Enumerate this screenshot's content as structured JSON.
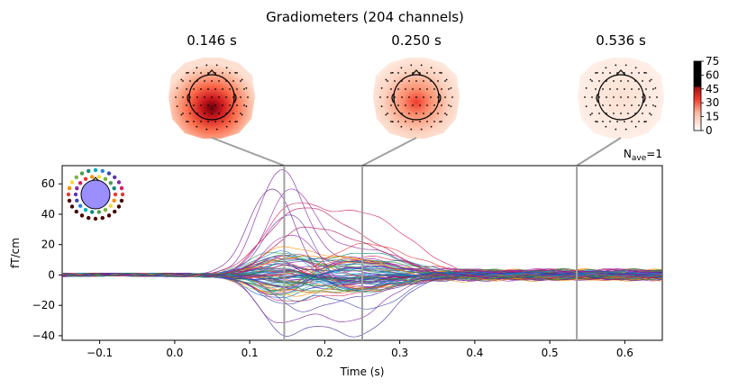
{
  "figure": {
    "title": "Gradiometers (204 channels)",
    "nave_label": "N",
    "nave_sub": "ave",
    "nave_value": "=1"
  },
  "topomaps": [
    {
      "time_label": "0.146 s",
      "time": 0.146,
      "peak_intensity": 0.9
    },
    {
      "time_label": "0.250 s",
      "time": 0.25,
      "peak_intensity": 0.6
    },
    {
      "time_label": "0.536 s",
      "time": 0.536,
      "peak_intensity": 0.15
    }
  ],
  "colorbar": {
    "ticks": [
      "75",
      "60",
      "45",
      "30",
      "15",
      "0"
    ],
    "tick_values": [
      75,
      60,
      45,
      30,
      15,
      0
    ],
    "range": [
      0,
      75
    ],
    "colors": [
      "#ffffff",
      "#fc9272",
      "#ef3b2c",
      "#a50f15",
      "#000000"
    ]
  },
  "chart_data": {
    "type": "line",
    "title": "Gradiometers (204 channels)",
    "xlabel": "Time (s)",
    "ylabel": "fT/cm",
    "xlim": [
      -0.15,
      0.65
    ],
    "ylim": [
      -43,
      72
    ],
    "xticks": [
      -0.1,
      0.0,
      0.1,
      0.2,
      0.3,
      0.4,
      0.5,
      0.6
    ],
    "xtick_labels": [
      "−0.1",
      "0.0",
      "0.1",
      "0.2",
      "0.3",
      "0.4",
      "0.5",
      "0.6"
    ],
    "yticks": [
      60,
      40,
      20,
      0,
      -20,
      -40
    ],
    "ytick_labels": [
      "60",
      "40",
      "20",
      "0",
      "−20",
      "−40"
    ],
    "vlines": [
      0.146,
      0.25,
      0.536
    ],
    "n_channels": 204,
    "representative_traces": [
      {
        "color": "#7b1fa2",
        "p1_amp": 65,
        "p2_amp": 10
      },
      {
        "color": "#6a1b9a",
        "p1_amp": 58,
        "p2_amp": -8
      },
      {
        "color": "#8e24aa",
        "p1_amp": 50,
        "p2_amp": 18
      },
      {
        "color": "#5e35b1",
        "p1_amp": 44,
        "p2_amp": -12
      },
      {
        "color": "#d81b60",
        "p1_amp": 38,
        "p2_amp": 40
      },
      {
        "color": "#c2185b",
        "p1_amp": 30,
        "p2_amp": 28
      },
      {
        "color": "#4527a0",
        "p1_amp": -32,
        "p2_amp": -40
      },
      {
        "color": "#7b1fa2",
        "p1_amp": -25,
        "p2_amp": -30
      },
      {
        "color": "#3949ab",
        "p1_amp": -18,
        "p2_amp": -22
      },
      {
        "color": "#00897b",
        "p1_amp": 12,
        "p2_amp": 15
      },
      {
        "color": "#43a047",
        "p1_amp": -10,
        "p2_amp": 8
      },
      {
        "color": "#1e88e5",
        "p1_amp": 20,
        "p2_amp": -10
      },
      {
        "color": "#fb8c00",
        "p1_amp": 8,
        "p2_amp": 12
      },
      {
        "color": "#e53935",
        "p1_amp": -6,
        "p2_amp": 20
      },
      {
        "color": "#26a69a",
        "p1_amp": 5,
        "p2_amp": -6
      },
      {
        "color": "#9c27b0",
        "p1_amp": 25,
        "p2_amp": 5
      },
      {
        "color": "#512da8",
        "p1_amp": -14,
        "p2_amp": -16
      },
      {
        "color": "#ad1457",
        "p1_amp": 16,
        "p2_amp": 24
      },
      {
        "color": "#1565c0",
        "p1_amp": -4,
        "p2_amp": 4
      },
      {
        "color": "#2e7d32",
        "p1_amp": 3,
        "p2_amp": -3
      }
    ]
  }
}
